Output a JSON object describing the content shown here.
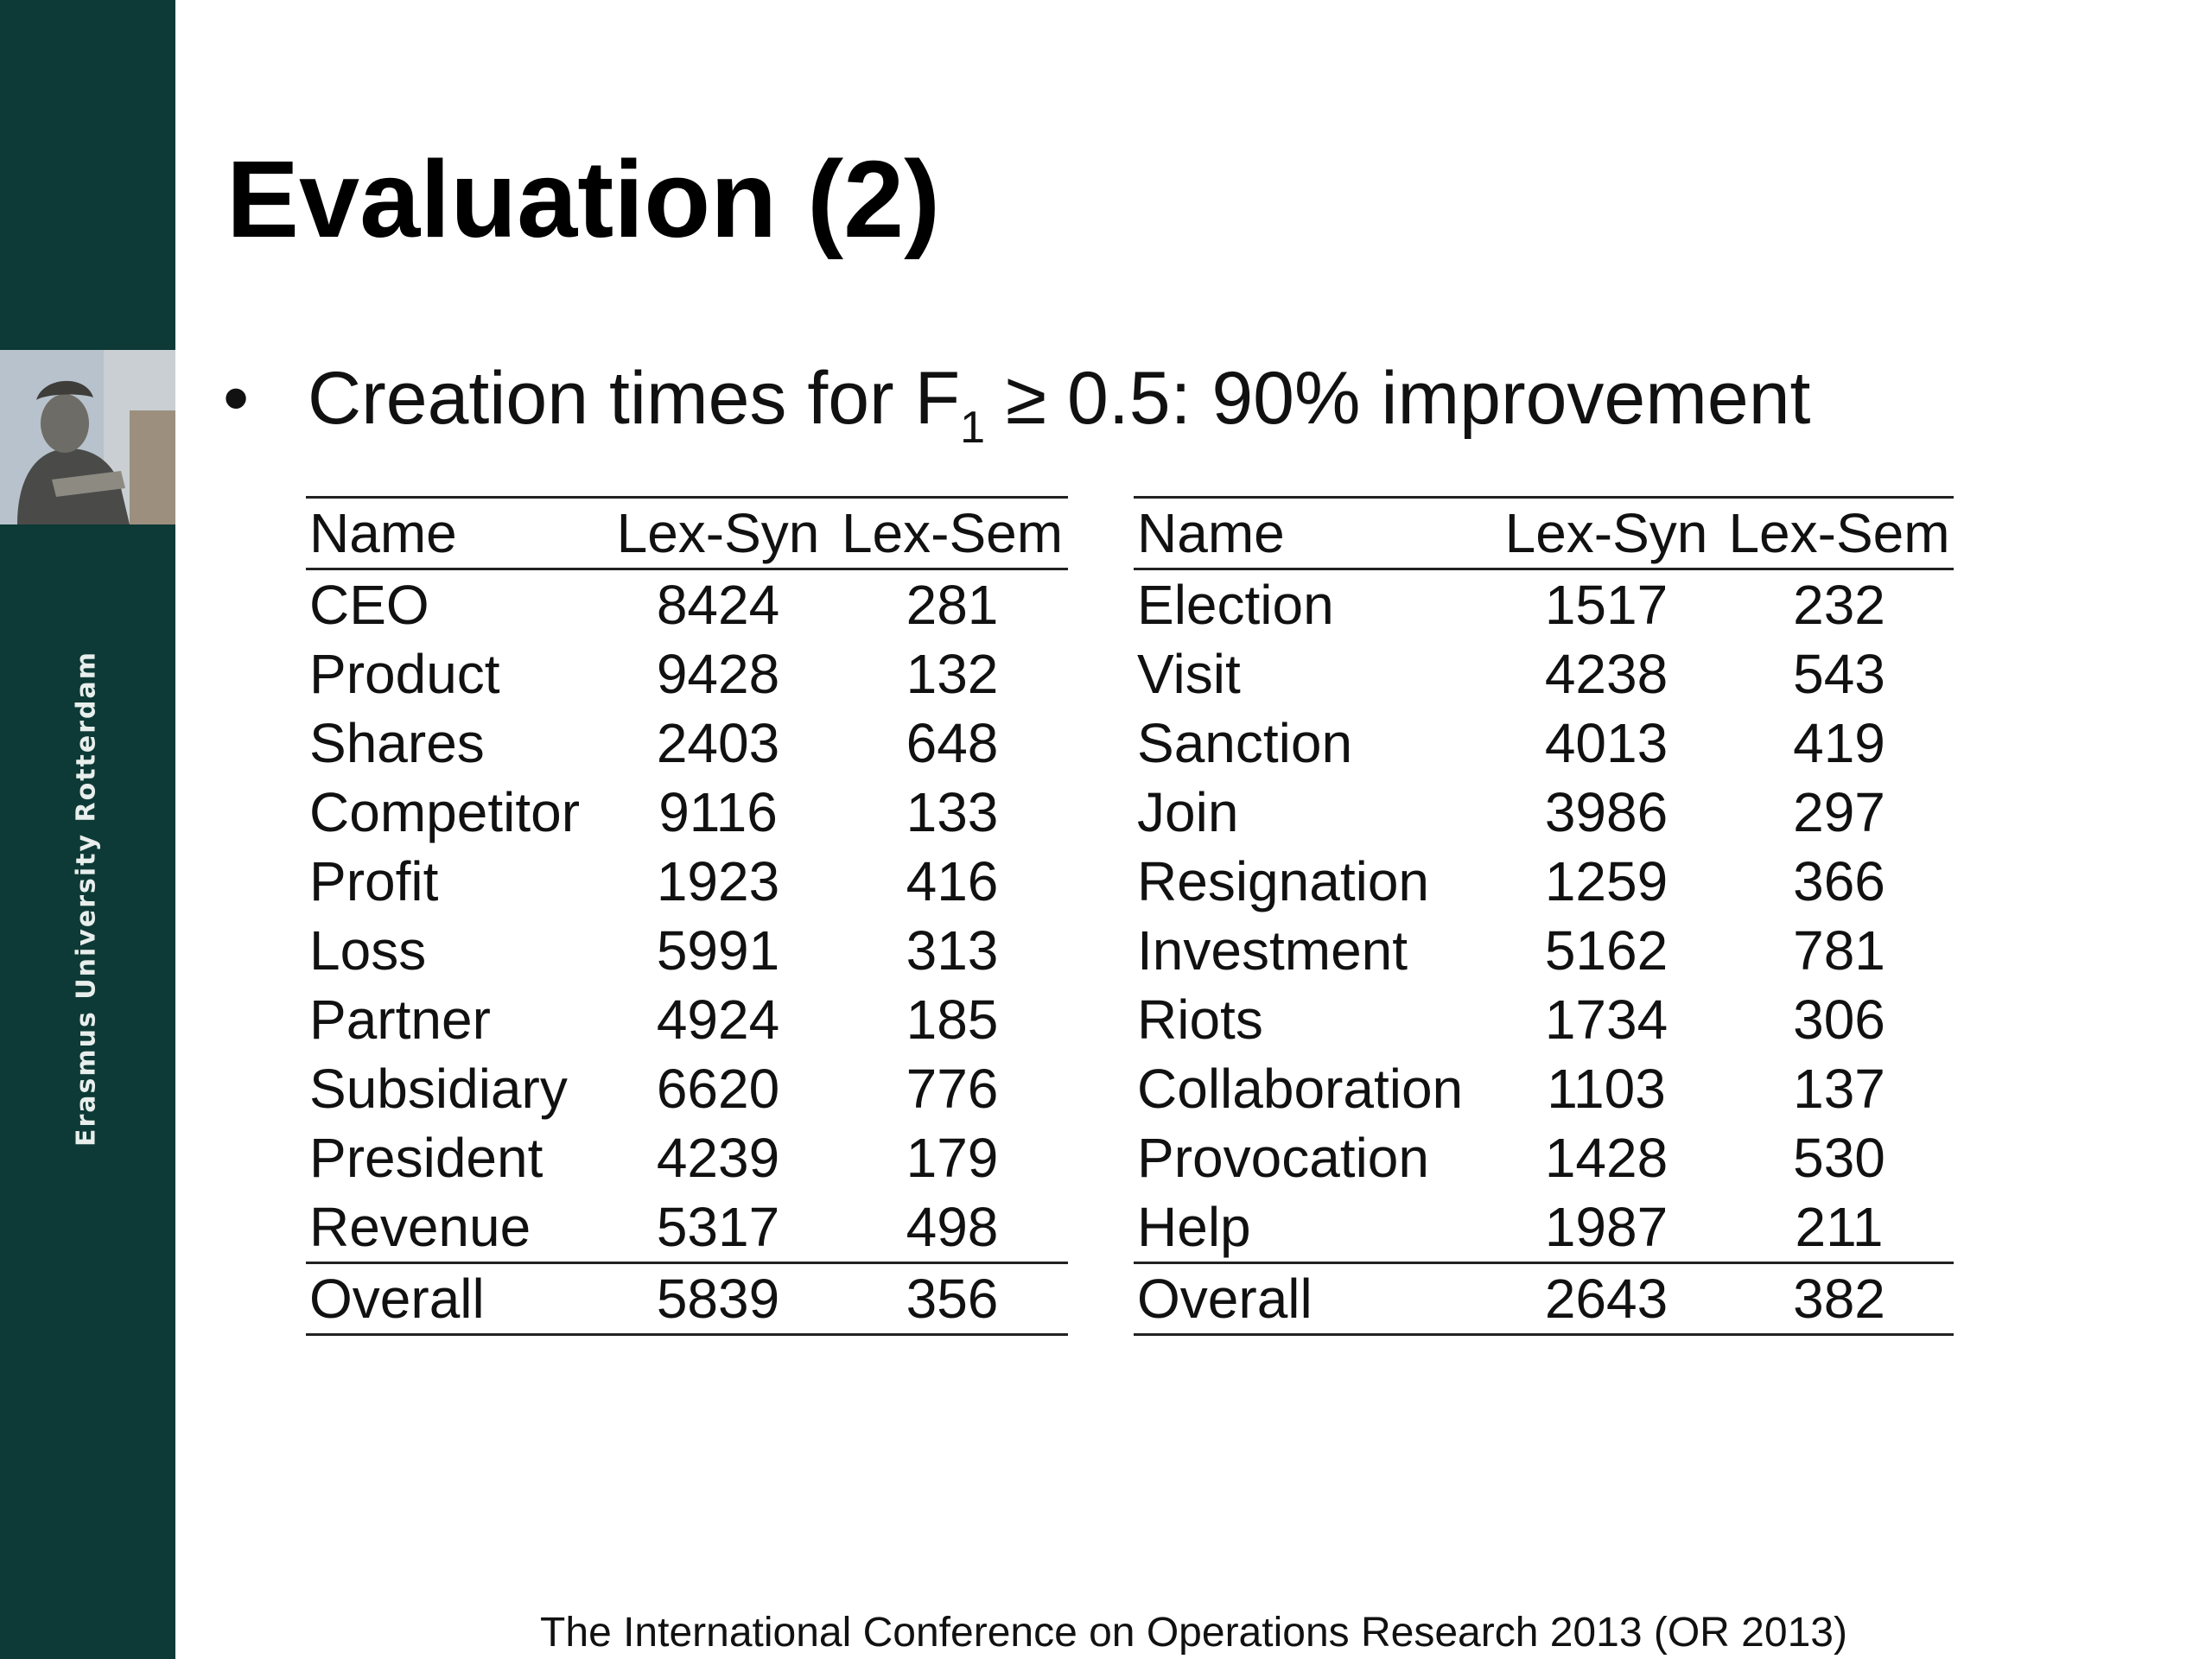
{
  "sidebar": {
    "brand_text": "Erasmus University Rotterdam",
    "color": "#0d3a36"
  },
  "slide": {
    "title": "Evaluation (2)",
    "bullet": {
      "symbol": "•",
      "text_before": "Creation times for F",
      "subscript": "1",
      "text_after": " ≥ 0.5: 90% improvement"
    },
    "footer": "The International Conference on Operations Research 2013 (OR 2013)"
  },
  "tables": {
    "left": {
      "headers": [
        "Name",
        "Lex-Syn",
        "Lex-Sem"
      ],
      "rows": [
        [
          "CEO",
          "8424",
          "281"
        ],
        [
          "Product",
          "9428",
          "132"
        ],
        [
          "Shares",
          "2403",
          "648"
        ],
        [
          "Competitor",
          "9116",
          "133"
        ],
        [
          "Profit",
          "1923",
          "416"
        ],
        [
          "Loss",
          "5991",
          "313"
        ],
        [
          "Partner",
          "4924",
          "185"
        ],
        [
          "Subsidiary",
          "6620",
          "776"
        ],
        [
          "President",
          "4239",
          "179"
        ],
        [
          "Revenue",
          "5317",
          "498"
        ]
      ],
      "overall": [
        "Overall",
        "5839",
        "356"
      ]
    },
    "right": {
      "headers": [
        "Name",
        "Lex-Syn",
        "Lex-Sem"
      ],
      "rows": [
        [
          "Election",
          "1517",
          "232"
        ],
        [
          "Visit",
          "4238",
          "543"
        ],
        [
          "Sanction",
          "4013",
          "419"
        ],
        [
          "Join",
          "3986",
          "297"
        ],
        [
          "Resignation",
          "1259",
          "366"
        ],
        [
          "Investment",
          "5162",
          "781"
        ],
        [
          "Riots",
          "1734",
          "306"
        ],
        [
          "Collaboration",
          "1103",
          "137"
        ],
        [
          "Provocation",
          "1428",
          "530"
        ],
        [
          "Help",
          "1987",
          "211"
        ]
      ],
      "overall": [
        "Overall",
        "2643",
        "382"
      ]
    }
  }
}
